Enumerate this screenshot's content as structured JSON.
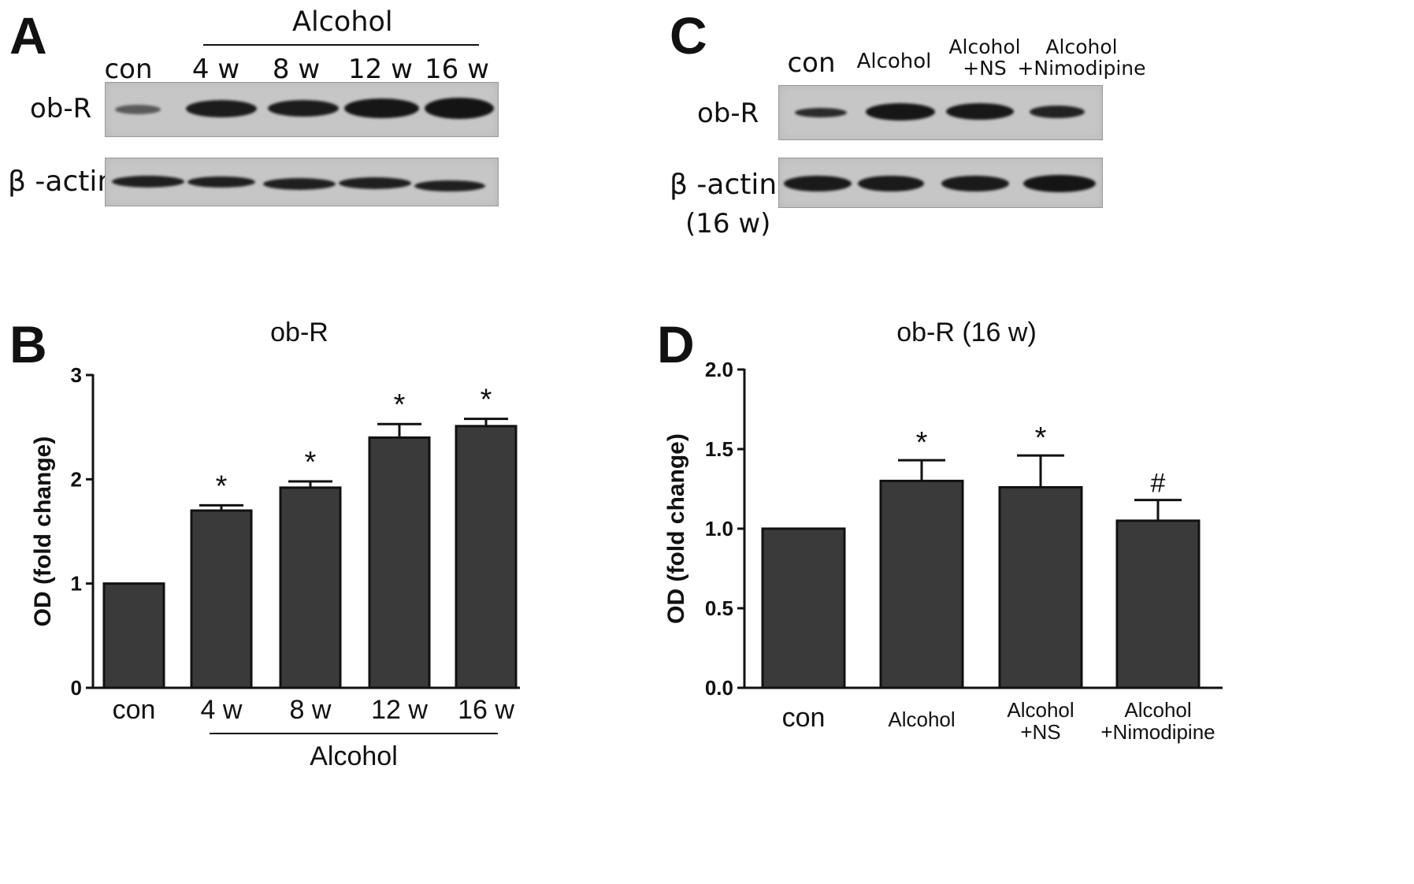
{
  "panels": {
    "a": {
      "label": "A",
      "group_label": "Alcohol",
      "lanes": [
        "con",
        "4 w",
        "8 w",
        "12 w",
        "16 w"
      ],
      "rows": [
        "ob-R",
        "β -actin"
      ]
    },
    "c": {
      "label": "C",
      "lanes": [
        "con",
        "Alcohol",
        "Alcohol\n+NS",
        "Alcohol\n+Nimodipine"
      ],
      "rows": [
        "ob-R",
        "β -actin",
        "(16 w)"
      ]
    },
    "b": {
      "label": "B"
    },
    "d": {
      "label": "D"
    }
  },
  "colors": {
    "bar": "#3a3a3a",
    "blot_bg": "#c6c6c6",
    "band": "#1c1c1c"
  },
  "chart_data": [
    {
      "type": "bar",
      "panel": "B",
      "title": "ob-R",
      "ylabel": "OD (fold change)",
      "xlabel": "",
      "group_label": "Alcohol",
      "categories": [
        "con",
        "4 w",
        "8 w",
        "12 w",
        "16 w"
      ],
      "values": [
        1.0,
        1.7,
        1.92,
        2.4,
        2.51
      ],
      "errors": [
        0,
        0.05,
        0.06,
        0.13,
        0.07
      ],
      "annotations": [
        "",
        "*",
        "*",
        "*",
        "*"
      ],
      "ylim": [
        0,
        3
      ],
      "yticks": [
        0,
        1,
        2,
        3
      ],
      "ytick_labels": [
        "0",
        "1",
        "2",
        "3"
      ],
      "grid": false
    },
    {
      "type": "bar",
      "panel": "D",
      "title": "ob-R (16 w)",
      "ylabel": "OD (fold change)",
      "xlabel": "",
      "categories": [
        "con",
        "Alcohol",
        "Alcohol\n+NS",
        "Alcohol\n+Nimodipine"
      ],
      "values": [
        1.0,
        1.3,
        1.26,
        1.05
      ],
      "errors": [
        0,
        0.13,
        0.2,
        0.13
      ],
      "annotations": [
        "",
        "*",
        "*",
        "#"
      ],
      "ylim": [
        0,
        2.0
      ],
      "yticks": [
        0,
        0.5,
        1.0,
        1.5,
        2.0
      ],
      "ytick_labels": [
        "0.0",
        "0.5",
        "1.0",
        "1.5",
        "2.0"
      ],
      "grid": false
    }
  ]
}
